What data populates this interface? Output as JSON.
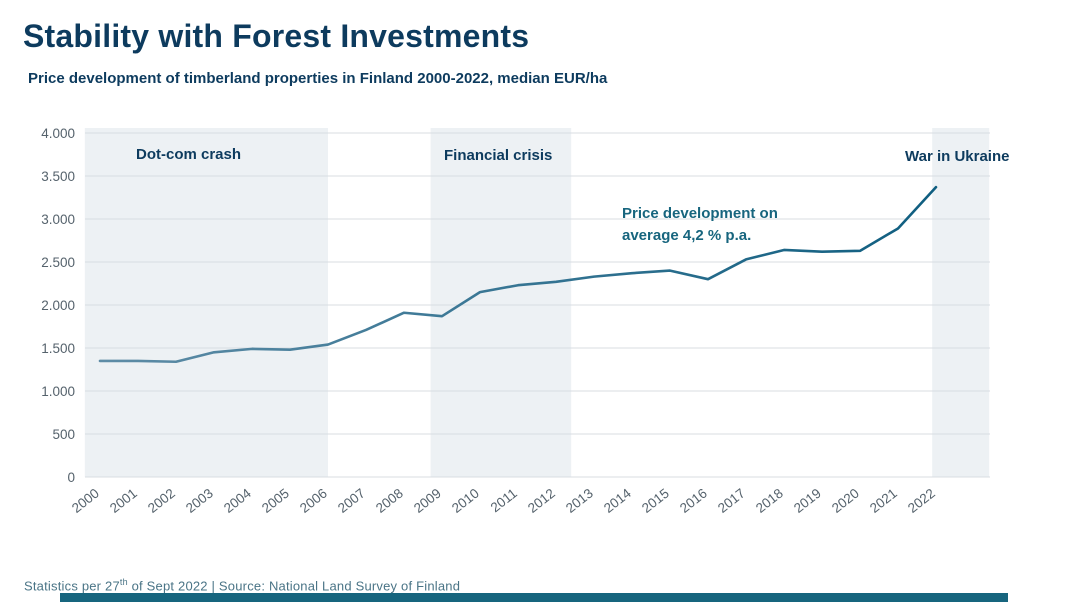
{
  "header": {
    "title": "Stability with Forest Investments",
    "subtitle": "Price development of timberland properties in Finland 2000-2022, median EUR/ha"
  },
  "chart_data": {
    "type": "line",
    "title": "Stability with Forest Investments",
    "subtitle": "Price development of timberland properties in Finland 2000-2022, median EUR/ha",
    "x": [
      2000,
      2001,
      2002,
      2003,
      2004,
      2005,
      2006,
      2007,
      2008,
      2009,
      2010,
      2011,
      2012,
      2013,
      2014,
      2015,
      2016,
      2017,
      2018,
      2019,
      2020,
      2021,
      2022
    ],
    "values": [
      1350,
      1350,
      1340,
      1450,
      1490,
      1480,
      1540,
      1710,
      1910,
      1870,
      2150,
      2230,
      2270,
      2330,
      2370,
      2400,
      2300,
      2530,
      2640,
      2620,
      2630,
      2890,
      3370
    ],
    "ylabel": "median EUR/ha",
    "xlabel": "",
    "ylim": [
      0,
      4000
    ],
    "grid": true,
    "legend_position": "none",
    "ytick_values": [
      0,
      500,
      1000,
      1500,
      2000,
      2500,
      3000,
      3500,
      4000
    ],
    "ytick_labels": [
      "0",
      "500",
      "1.000",
      "1.500",
      "2.000",
      "2.500",
      "3.000",
      "3.500",
      "4.000"
    ],
    "xtick_labels": [
      "2000",
      "2001",
      "2002",
      "2003",
      "2004",
      "2005",
      "2006",
      "2007",
      "2008",
      "2009",
      "2010",
      "2011",
      "2012",
      "2013",
      "2014",
      "2015",
      "2016",
      "2017",
      "2018",
      "2019",
      "2020",
      "2021",
      "2022"
    ],
    "regions": [
      {
        "label": "Dot-com crash",
        "x_start": 1999.6,
        "x_end": 2006.0
      },
      {
        "label": "Financial crisis",
        "x_start": 2008.7,
        "x_end": 2012.4
      },
      {
        "label": "War in Ukraine",
        "x_start": 2021.9,
        "x_end": 2023.4
      }
    ],
    "annotation": "Price development on average 4,2 % p.a."
  },
  "colors": {
    "title": "#0d3b5e",
    "band_label": "#0d3b5e",
    "annotation": "#17657e",
    "line_start": "#5e8ca6",
    "line_end": "#0f5e80",
    "band": "#edf1f4",
    "grid": "#d8dde2",
    "tick": "#55626c",
    "footer_text": "#4a7486",
    "footer_bar": "#17657e"
  },
  "footer": {
    "pre": "Statistics per 27",
    "sup": "th",
    "post": " of Sept 2022 | Source: National Land Survey of Finland"
  }
}
